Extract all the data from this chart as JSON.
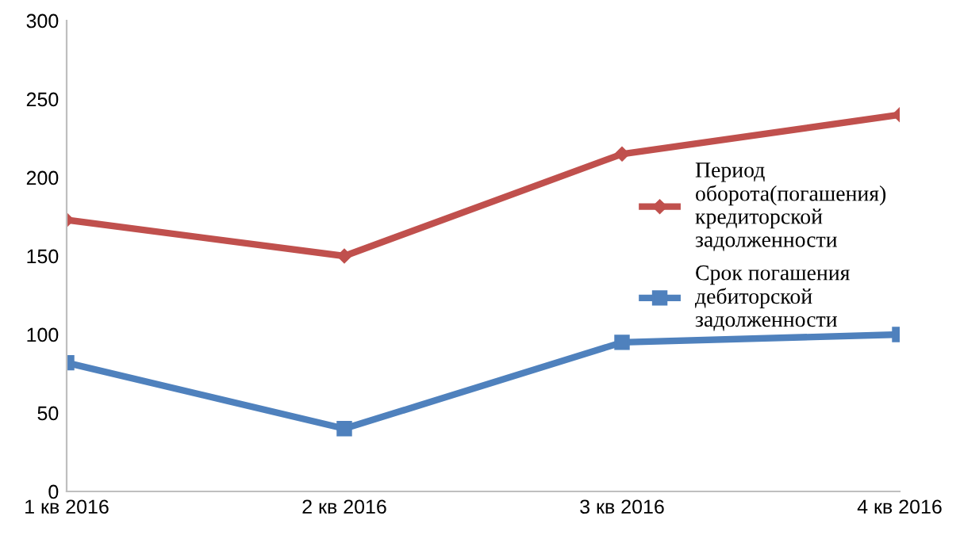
{
  "chart_data": {
    "type": "line",
    "categories": [
      "1 кв 2016",
      "2 кв 2016",
      "3 кв 2016",
      "4 кв 2016"
    ],
    "series": [
      {
        "name": "Период\nоборота(погашения)\nкредиторской\nзадолженности",
        "color": "#c0504d",
        "values": [
          173,
          150,
          215,
          240
        ],
        "marker": "diamond"
      },
      {
        "name": "Срок погашения\nдебиторской\nзадолженности",
        "color": "#4f81bd",
        "values": [
          82,
          40,
          95,
          100
        ],
        "marker": "square"
      }
    ],
    "ylim": [
      0,
      300
    ],
    "yticks": [
      0,
      50,
      100,
      150,
      200,
      250,
      300
    ],
    "grid": false,
    "legend": "right",
    "line_style": "solid"
  }
}
